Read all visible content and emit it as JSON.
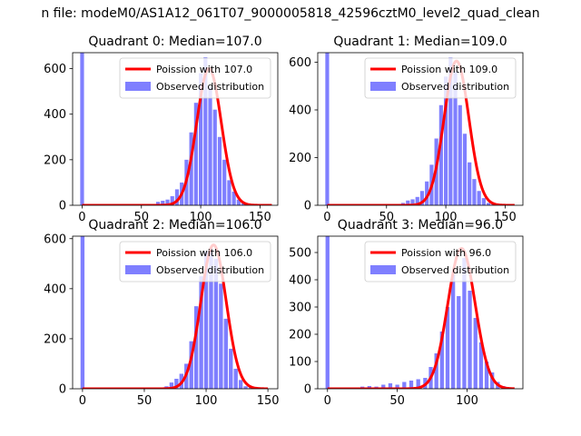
{
  "figure": {
    "suptitle": "n file: modeM0/AS1A12_061T07_9000005818_42596cztM0_level2_quad_clean"
  },
  "colors": {
    "poisson": "#ff0000",
    "observed": "#7f7fff",
    "axes": "#000000",
    "background": "#ffffff"
  },
  "chart_data": [
    {
      "type": "bar",
      "title": "Quadrant 0: Median=107.0",
      "xlim": [
        -8,
        165
      ],
      "ylim": [
        0,
        670
      ],
      "xticks": [
        0,
        50,
        100,
        150
      ],
      "yticks": [
        0,
        200,
        400,
        600
      ],
      "legend_position": "top-right",
      "median": 107.0,
      "bin_width": 3.2,
      "observed_spike": {
        "x": 0,
        "value": 670
      },
      "series": [
        {
          "name": "Poission with 107.0",
          "kind": "line",
          "mean": 107.0,
          "peak": 600,
          "x_range": [
            0,
            160
          ]
        },
        {
          "name": "Observed distribution",
          "kind": "histogram",
          "x": [
            60,
            64,
            68,
            72,
            76,
            80,
            84,
            88,
            92,
            96,
            100,
            104,
            108,
            112,
            116,
            120,
            124,
            128,
            132,
            136,
            140
          ],
          "values": [
            5,
            15,
            20,
            25,
            40,
            70,
            100,
            200,
            320,
            450,
            580,
            650,
            520,
            420,
            300,
            200,
            110,
            60,
            25,
            10,
            5
          ]
        }
      ]
    },
    {
      "type": "bar",
      "title": "Quadrant 1: Median=109.0",
      "xlim": [
        -8,
        165
      ],
      "ylim": [
        0,
        640
      ],
      "xticks": [
        0,
        50,
        100,
        150
      ],
      "yticks": [
        0,
        200,
        400,
        600
      ],
      "legend_position": "top-right",
      "median": 109.0,
      "bin_width": 3.2,
      "observed_spike": {
        "x": 0,
        "value": 640
      },
      "series": [
        {
          "name": "Poission with 109.0",
          "kind": "line",
          "mean": 109.0,
          "peak": 605,
          "x_range": [
            0,
            158
          ]
        },
        {
          "name": "Observed distribution",
          "kind": "histogram",
          "x": [
            60,
            64,
            68,
            72,
            76,
            80,
            84,
            88,
            92,
            96,
            100,
            104,
            108,
            112,
            116,
            120,
            124,
            128,
            132,
            136,
            140
          ],
          "values": [
            5,
            10,
            20,
            25,
            35,
            60,
            100,
            170,
            280,
            420,
            540,
            620,
            560,
            420,
            300,
            180,
            110,
            60,
            30,
            10,
            5
          ]
        }
      ]
    },
    {
      "type": "bar",
      "title": "Quadrant 2: Median=106.0",
      "xlim": [
        -8,
        158
      ],
      "ylim": [
        0,
        610
      ],
      "xticks": [
        0,
        50,
        100,
        150
      ],
      "yticks": [
        0,
        200,
        400,
        600
      ],
      "legend_position": "top-right",
      "median": 106.0,
      "bin_width": 3.2,
      "observed_spike": {
        "x": 0,
        "value": 610
      },
      "series": [
        {
          "name": "Poission with 106.0",
          "kind": "line",
          "mean": 106.0,
          "peak": 575,
          "x_range": [
            0,
            150
          ]
        },
        {
          "name": "Observed distribution",
          "kind": "histogram",
          "x": [
            64,
            68,
            72,
            76,
            80,
            84,
            88,
            92,
            96,
            100,
            104,
            108,
            112,
            116,
            120,
            124,
            128,
            132,
            136
          ],
          "values": [
            5,
            10,
            25,
            40,
            60,
            100,
            190,
            330,
            450,
            550,
            560,
            520,
            420,
            280,
            160,
            80,
            35,
            10,
            5
          ]
        }
      ]
    },
    {
      "type": "bar",
      "title": "Quadrant 3: Median=96.0",
      "xlim": [
        -7,
        140
      ],
      "ylim": [
        0,
        560
      ],
      "xticks": [
        0,
        50,
        100
      ],
      "yticks": [
        0,
        100,
        200,
        300,
        400,
        500
      ],
      "legend_position": "top-right",
      "median": 96.0,
      "bin_width": 2.8,
      "observed_spike": {
        "x": 0,
        "value": 560
      },
      "series": [
        {
          "name": "Poission with 96.0",
          "kind": "line",
          "mean": 96.0,
          "peak": 515,
          "x_range": [
            0,
            134
          ]
        },
        {
          "name": "Observed distribution",
          "kind": "histogram",
          "x": [
            20,
            25,
            30,
            35,
            40,
            45,
            50,
            55,
            60,
            65,
            70,
            74,
            78,
            82,
            86,
            90,
            94,
            98,
            102,
            106,
            110,
            114,
            118,
            122,
            126,
            130
          ],
          "values": [
            5,
            8,
            10,
            8,
            15,
            20,
            15,
            25,
            30,
            35,
            40,
            80,
            130,
            210,
            300,
            420,
            340,
            480,
            360,
            260,
            170,
            100,
            60,
            25,
            10,
            5
          ]
        }
      ]
    }
  ]
}
